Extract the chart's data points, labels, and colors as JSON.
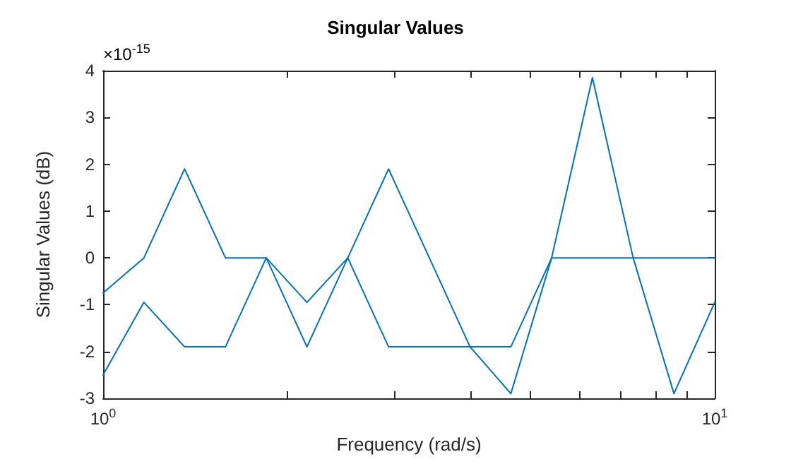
{
  "chart_data": {
    "type": "line",
    "title": "Singular Values",
    "xlabel": "Frequency (rad/s)",
    "ylabel": "Singular Values (dB)",
    "annotations": [
      "×10$^{-15}$"
    ],
    "log": "x",
    "grid": false,
    "legend": false,
    "marker": "none",
    "line_style": "solid",
    "xlim": [
      1,
      10
    ],
    "xticks": [
      {
        "value": 1,
        "label": "10$^{0}$"
      },
      {
        "value": 2,
        "label": null
      },
      {
        "value": 3,
        "label": null
      },
      {
        "value": 4,
        "label": null
      },
      {
        "value": 5,
        "label": null
      },
      {
        "value": 6,
        "label": null
      },
      {
        "value": 7,
        "label": null
      },
      {
        "value": 8,
        "label": null
      },
      {
        "value": 9,
        "label": null
      },
      {
        "value": 10,
        "label": "10$^{1}$"
      }
    ],
    "ylim": [
      -3,
      4
    ],
    "yticks": [
      -3,
      -2,
      -1,
      0,
      1,
      2,
      3,
      4
    ],
    "x": [
      1,
      1.166,
      1.359,
      1.585,
      1.848,
      2.154,
      2.512,
      2.929,
      3.415,
      3.981,
      4.642,
      5.412,
      6.31,
      7.356,
      8.577,
      10
    ],
    "series": [
      {
        "color": "#0072bd",
        "values": [
          -0.75,
          0,
          1.9,
          0,
          0,
          -0.95,
          0,
          1.9,
          0,
          -1.9,
          -2.9,
          0,
          3.85,
          0,
          -2.9,
          -0.95
        ]
      },
      {
        "color": "#0072bd",
        "values": [
          -2.5,
          -0.95,
          -1.9,
          -1.9,
          0,
          -1.9,
          0,
          -1.9,
          -1.9,
          -1.9,
          -1.9,
          0,
          0,
          0,
          0,
          0
        ]
      }
    ]
  }
}
